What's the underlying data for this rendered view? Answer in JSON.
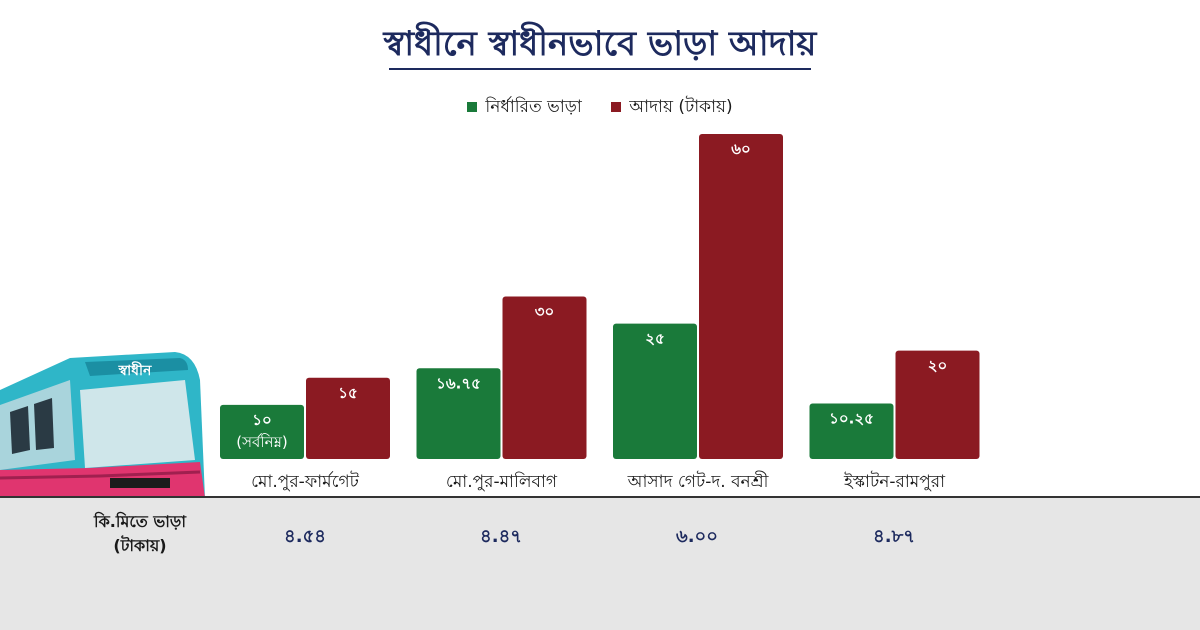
{
  "title": "স্বাধীনে স্বাধীনভাবে ভাড়া আদায়",
  "colors": {
    "fixed": "#1a7a3a",
    "collected": "#8b1a22",
    "title": "#1d2a5e"
  },
  "legend": [
    {
      "label": "নির্ধারিত ভাড়া",
      "color": "#1a7a3a"
    },
    {
      "label": "আদায় (টাকায়)",
      "color": "#8b1a22"
    }
  ],
  "bus_sign": "স্বাধীন",
  "chart_data": {
    "type": "bar",
    "categories": [
      "মো.পুর-ফার্মগেট",
      "মো.পুর-মালিবাগ",
      "আসাদ গেট-দ. বনশ্রী",
      "ইস্কাটন-রামপুরা"
    ],
    "series": [
      {
        "name": "নির্ধারিত ভাড়া",
        "values": [
          10,
          16.75,
          25,
          10.25
        ],
        "labels": [
          "১০",
          "১৬.৭৫",
          "২৫",
          "১০.২৫"
        ],
        "note": [
          "(সর্বনিম্ন)",
          "",
          "",
          ""
        ]
      },
      {
        "name": "আদায় (টাকায়)",
        "values": [
          15,
          30,
          60,
          20
        ],
        "labels": [
          "১৫",
          "৩০",
          "৬০",
          "২০"
        ]
      }
    ],
    "ylim": [
      0,
      60
    ],
    "grid": false,
    "legend_position": "top-center"
  },
  "per_km": {
    "label_line1": "কি.মিতে ভাড়া",
    "label_line2": "(টাকায়)",
    "values": [
      "৪.৫৪",
      "৪.৪৭",
      "৬.০০",
      "৪.৮৭"
    ]
  }
}
